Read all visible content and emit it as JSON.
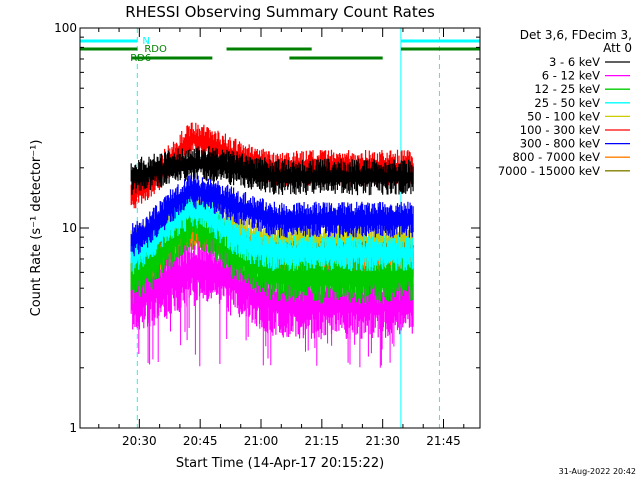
{
  "chart_data": {
    "type": "line",
    "title": "RHESSI Observing Summary Count Rates",
    "xlabel": "Start Time (14-Apr-17 20:15:22)",
    "ylabel": "Count Rate (s⁻¹ detector⁻¹)",
    "yscale": "log",
    "xlim": [
      "20:15:22",
      "21:54:00"
    ],
    "ylim": [
      1,
      100
    ],
    "x_ticks": [
      "20:30",
      "20:45",
      "21:00",
      "21:15",
      "21:30",
      "21:45"
    ],
    "y_ticks": [
      "1",
      "10",
      "100"
    ],
    "legend_title": [
      "Det 3,6, FDecim 3,",
      "Att 0"
    ],
    "legend_position": "right",
    "footer": "31-Aug-2022 20:42",
    "data_start": "20:28:00",
    "data_end": "21:37:30",
    "series": [
      {
        "name": "3 - 6 keV",
        "color": "#000000",
        "x": [
          "20:28",
          "20:33",
          "20:38",
          "20:43",
          "20:48",
          "20:53",
          "20:58",
          "21:03",
          "21:10",
          "21:20",
          "21:30",
          "21:37"
        ],
        "values": [
          18,
          19,
          20,
          21,
          21,
          20,
          19,
          18,
          18,
          18,
          18,
          18
        ]
      },
      {
        "name": "6 - 12 keV",
        "color": "#ff00ff",
        "x": [
          "20:28",
          "20:33",
          "20:38",
          "20:43",
          "20:48",
          "20:53",
          "20:58",
          "21:03",
          "21:10",
          "21:20",
          "21:30",
          "21:37"
        ],
        "values": [
          4.5,
          4.8,
          5.5,
          6.2,
          6.0,
          5.5,
          5.0,
          4.3,
          4.2,
          4.2,
          4.2,
          4.5
        ]
      },
      {
        "name": "12 - 25 keV",
        "color": "#00cc00",
        "x": [
          "20:28",
          "20:33",
          "20:38",
          "20:43",
          "20:48",
          "20:53",
          "20:58",
          "21:03",
          "21:10",
          "21:20",
          "21:30",
          "21:37"
        ],
        "values": [
          5.5,
          6.5,
          8.5,
          11,
          9.5,
          7.5,
          6.5,
          5.8,
          5.6,
          5.6,
          5.6,
          5.8
        ]
      },
      {
        "name": "25 - 50 keV",
        "color": "#00ffff",
        "x": [
          "20:28",
          "20:33",
          "20:38",
          "20:43",
          "20:48",
          "20:53",
          "20:58",
          "21:03",
          "21:10",
          "21:20",
          "21:30",
          "21:37"
        ],
        "values": [
          7,
          8.5,
          10.5,
          12.5,
          11,
          9,
          8,
          7.5,
          7.5,
          7.5,
          7.5,
          7.5
        ]
      },
      {
        "name": "50 - 100 keV",
        "color": "#cccc00",
        "x": [
          "20:28",
          "20:33",
          "20:38",
          "20:43",
          "20:48",
          "20:53",
          "20:58",
          "21:03",
          "21:10",
          "21:20",
          "21:30",
          "21:37"
        ],
        "values": [
          8,
          9.5,
          11,
          12.5,
          11.5,
          10,
          9,
          8.5,
          8.5,
          8.5,
          8.5,
          8.5
        ]
      },
      {
        "name": "100 - 300 keV",
        "color": "#ff0000",
        "x": [
          "20:28",
          "20:33",
          "20:38",
          "20:43",
          "20:48",
          "20:53",
          "20:58",
          "21:03",
          "21:10",
          "21:20",
          "21:30",
          "21:37"
        ],
        "values": [
          15,
          17,
          22,
          28,
          26,
          23,
          21,
          20,
          20,
          20,
          20,
          20
        ]
      },
      {
        "name": "300 - 800 keV",
        "color": "#0000ff",
        "x": [
          "20:28",
          "20:33",
          "20:38",
          "20:43",
          "20:48",
          "20:53",
          "20:58",
          "21:03",
          "21:10",
          "21:20",
          "21:30",
          "21:37"
        ],
        "values": [
          8.5,
          10,
          13,
          15.5,
          14.5,
          13,
          12,
          11,
          11,
          11,
          11,
          11
        ]
      },
      {
        "name": "800 - 7000 keV",
        "color": "#ff8000",
        "x": [
          "20:28",
          "20:33",
          "20:38",
          "20:43",
          "20:48",
          "20:53",
          "20:58",
          "21:03",
          "21:10",
          "21:20",
          "21:30",
          "21:37"
        ],
        "values": [
          5,
          6,
          8,
          10,
          9.5,
          8.5,
          7.5,
          6.5,
          6.5,
          6.5,
          6.5,
          6.5
        ]
      },
      {
        "name": "7000 - 15000 keV",
        "color": "#808000",
        "x": [
          "20:28",
          "20:33",
          "20:38",
          "20:43",
          "20:48",
          "20:53",
          "20:58",
          "21:03",
          "21:10",
          "21:20",
          "21:30",
          "21:37"
        ],
        "values": [
          6,
          7,
          8.5,
          9.5,
          9,
          8,
          7.5,
          7,
          7,
          7,
          7,
          7
        ]
      }
    ],
    "annotations": {
      "night": {
        "label": "N",
        "color": "#00ffff",
        "intervals": [
          [
            "20:15:22",
            "20:29:30"
          ],
          [
            "21:34:30",
            "21:54:00"
          ]
        ]
      },
      "saa_boundaries_dashed": [
        "20:29:30",
        "21:44:00"
      ],
      "solid_vertical_lines": [
        "20:15:22",
        "21:34:30"
      ],
      "rdo": {
        "label": "RDO",
        "color": "#008000",
        "intervals": [
          [
            "20:15:22",
            "20:29:30"
          ],
          [
            "20:51:30",
            "21:12:30"
          ],
          [
            "21:34:30",
            "21:54:00"
          ]
        ]
      },
      "rd6": {
        "label": "RD6",
        "color": "#008000",
        "intervals": [
          [
            "20:28:00",
            "20:48:00"
          ],
          [
            "21:07:00",
            "21:30:00"
          ]
        ]
      }
    }
  }
}
